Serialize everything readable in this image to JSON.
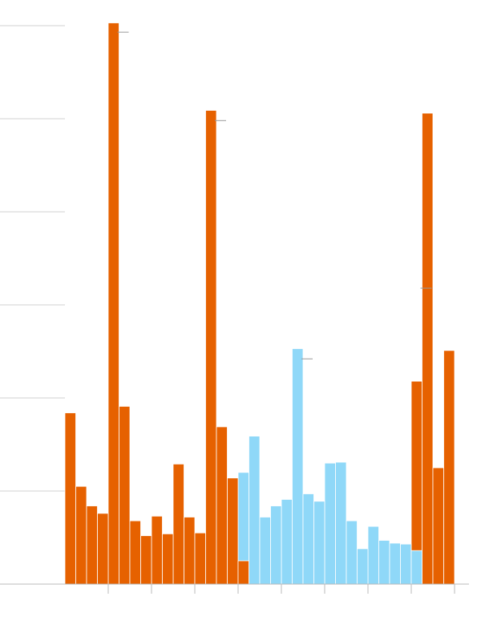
{
  "chart_data": {
    "type": "bar",
    "categories": [
      null,
      null,
      null,
      null,
      null,
      null,
      null,
      null,
      null,
      null,
      null,
      null,
      null,
      null,
      null,
      null,
      null,
      null,
      null,
      null,
      null,
      null,
      null,
      null,
      null,
      null,
      null,
      null,
      null,
      null,
      null,
      null,
      null,
      null,
      null,
      null
    ],
    "series": [
      {
        "color": "#e66100",
        "values": [
          1.84,
          1.05,
          0.84,
          0.76,
          6.03,
          1.91,
          0.68,
          0.52,
          0.73,
          0.54,
          1.29,
          0.72,
          0.55,
          5.09,
          1.69,
          1.14,
          0.25,
          null,
          null,
          null,
          null,
          null,
          null,
          null,
          null,
          null,
          null,
          null,
          null,
          null,
          null,
          null,
          2.18,
          5.06,
          1.25,
          2.51
        ]
      },
      {
        "color": "#8fd8f8",
        "values": [
          null,
          null,
          null,
          null,
          null,
          null,
          null,
          null,
          null,
          null,
          null,
          null,
          null,
          null,
          null,
          null,
          1.2,
          1.59,
          0.72,
          0.84,
          0.91,
          2.53,
          0.97,
          0.89,
          1.3,
          1.31,
          0.68,
          0.38,
          0.62,
          0.47,
          0.44,
          0.43,
          0.36,
          null,
          null,
          null
        ]
      },
      {
        "type": "marker",
        "color": "#999999",
        "values": [
          null,
          null,
          null,
          null,
          5.93,
          null,
          null,
          null,
          null,
          null,
          null,
          null,
          null,
          4.98,
          null,
          null,
          null,
          null,
          null,
          null,
          null,
          2.42,
          null,
          null,
          null,
          null,
          null,
          null,
          null,
          null,
          null,
          null,
          3.18,
          null,
          null,
          null
        ]
      }
    ],
    "ylim": [
      0,
      6
    ],
    "yticks": [
      0,
      1,
      2,
      3,
      4,
      5,
      6
    ],
    "xlim": [
      0,
      36
    ],
    "xticks": [
      4,
      8,
      12,
      16,
      20,
      24,
      28,
      32,
      36
    ],
    "grid": true
  }
}
